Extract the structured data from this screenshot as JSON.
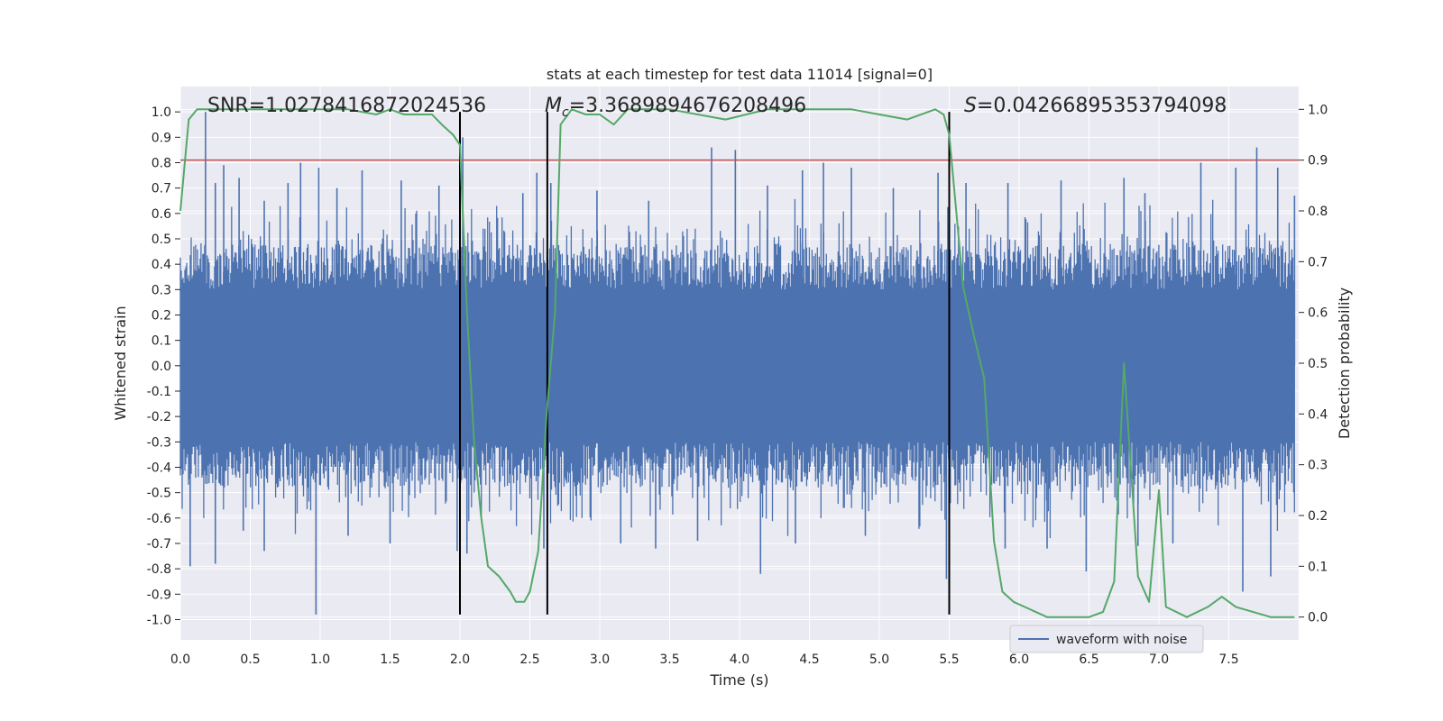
{
  "chart_data": {
    "type": "line",
    "title": "stats at each timestep for test data 11014 [signal=0]",
    "xlabel": "Time (s)",
    "ylabel": "Whitened strain",
    "y2label": "Detection probability",
    "xlim": [
      0.0,
      8.0
    ],
    "ylim": [
      -1.08,
      1.1
    ],
    "y2lim": [
      -0.045,
      1.045
    ],
    "x_ticks": [
      "0.0",
      "0.5",
      "1.0",
      "1.5",
      "2.0",
      "2.5",
      "3.0",
      "3.5",
      "4.0",
      "4.5",
      "5.0",
      "5.5",
      "6.0",
      "6.5",
      "7.0",
      "7.5"
    ],
    "y_ticks": [
      "1.0",
      "0.9",
      "0.8",
      "0.7",
      "0.6",
      "0.5",
      "0.4",
      "0.3",
      "0.2",
      "0.1",
      "0.0",
      "-0.1",
      "-0.2",
      "-0.3",
      "-0.4",
      "-0.5",
      "-0.6",
      "-0.7",
      "-0.8",
      "-0.9",
      "-1.0"
    ],
    "y2_ticks": [
      "1.0",
      "0.9",
      "0.8",
      "0.7",
      "0.6",
      "0.5",
      "0.4",
      "0.3",
      "0.2",
      "0.1",
      "0.0"
    ],
    "grid": true,
    "legend": {
      "placement": "lower-right",
      "entries": [
        "waveform with noise"
      ]
    },
    "annotations": {
      "snr": "SNR=1.0278416872024536",
      "mc_symbol": "M",
      "mc_sub": "c",
      "mc_value": "=3.3689894676208496",
      "s_symbol": "S",
      "s_value": "=0.04266895353794098"
    },
    "threshold": {
      "axis": "y2",
      "value": 0.9,
      "color": "#c44e52"
    },
    "vlines": [
      2.0,
      2.625,
      5.5
    ],
    "vline_range_y": [
      -0.98,
      1.0
    ],
    "waveform": {
      "name": "waveform with noise",
      "color": "#4c72b0",
      "core_amplitude": 0.3,
      "spike_peaks": [
        {
          "x": 0.18,
          "y": 1.0
        },
        {
          "x": 0.25,
          "y": 0.72
        },
        {
          "x": 0.31,
          "y": 0.79
        },
        {
          "x": 0.42,
          "y": 0.74
        },
        {
          "x": 0.6,
          "y": 0.65
        },
        {
          "x": 0.77,
          "y": 0.72
        },
        {
          "x": 0.86,
          "y": 0.8
        },
        {
          "x": 0.99,
          "y": 0.78
        },
        {
          "x": 1.12,
          "y": 0.7
        },
        {
          "x": 1.3,
          "y": 0.77
        },
        {
          "x": 1.58,
          "y": 0.73
        },
        {
          "x": 1.85,
          "y": 0.71
        },
        {
          "x": 2.02,
          "y": 0.9
        },
        {
          "x": 2.45,
          "y": 0.68
        },
        {
          "x": 2.55,
          "y": 0.76
        },
        {
          "x": 2.65,
          "y": 0.72
        },
        {
          "x": 2.98,
          "y": 0.69
        },
        {
          "x": 3.35,
          "y": 0.65
        },
        {
          "x": 3.8,
          "y": 0.86
        },
        {
          "x": 3.97,
          "y": 0.85
        },
        {
          "x": 4.2,
          "y": 0.71
        },
        {
          "x": 4.45,
          "y": 0.77
        },
        {
          "x": 4.6,
          "y": 0.8
        },
        {
          "x": 4.8,
          "y": 0.78
        },
        {
          "x": 5.1,
          "y": 0.7
        },
        {
          "x": 5.42,
          "y": 0.76
        },
        {
          "x": 5.62,
          "y": 0.72
        },
        {
          "x": 5.92,
          "y": 0.72
        },
        {
          "x": 6.3,
          "y": 0.73
        },
        {
          "x": 6.75,
          "y": 0.74
        },
        {
          "x": 6.9,
          "y": 0.68
        },
        {
          "x": 7.3,
          "y": 0.8
        },
        {
          "x": 7.55,
          "y": 0.78
        },
        {
          "x": 7.7,
          "y": 0.86
        },
        {
          "x": 7.85,
          "y": 0.78
        },
        {
          "x": 7.97,
          "y": 0.67
        }
      ],
      "spike_troughs": [
        {
          "x": 0.07,
          "y": -0.79
        },
        {
          "x": 0.25,
          "y": -0.78
        },
        {
          "x": 0.45,
          "y": -0.65
        },
        {
          "x": 0.6,
          "y": -0.73
        },
        {
          "x": 0.97,
          "y": -0.98
        },
        {
          "x": 1.2,
          "y": -0.67
        },
        {
          "x": 1.5,
          "y": -0.7
        },
        {
          "x": 1.98,
          "y": -0.73
        },
        {
          "x": 2.05,
          "y": -0.74
        },
        {
          "x": 2.6,
          "y": -0.72
        },
        {
          "x": 3.15,
          "y": -0.7
        },
        {
          "x": 3.4,
          "y": -0.72
        },
        {
          "x": 3.7,
          "y": -0.69
        },
        {
          "x": 4.15,
          "y": -0.82
        },
        {
          "x": 4.4,
          "y": -0.7
        },
        {
          "x": 4.9,
          "y": -0.67
        },
        {
          "x": 5.48,
          "y": -0.84
        },
        {
          "x": 5.9,
          "y": -0.72
        },
        {
          "x": 6.2,
          "y": -0.72
        },
        {
          "x": 6.48,
          "y": -0.81
        },
        {
          "x": 6.85,
          "y": -0.71
        },
        {
          "x": 7.1,
          "y": -0.7
        },
        {
          "x": 7.6,
          "y": -0.89
        },
        {
          "x": 7.8,
          "y": -0.83
        }
      ]
    },
    "probability": {
      "color": "#55a868",
      "x": [
        0.0,
        0.06,
        0.12,
        0.3,
        0.6,
        0.9,
        1.2,
        1.4,
        1.5,
        1.6,
        1.8,
        1.87,
        1.95,
        2.0,
        2.05,
        2.1,
        2.15,
        2.2,
        2.28,
        2.36,
        2.4,
        2.46,
        2.5,
        2.56,
        2.62,
        2.68,
        2.72,
        2.8,
        2.9,
        3.0,
        3.1,
        3.2,
        3.5,
        3.9,
        4.2,
        4.8,
        5.0,
        5.2,
        5.4,
        5.46,
        5.5,
        5.6,
        5.68,
        5.75,
        5.82,
        5.88,
        5.96,
        6.04,
        6.2,
        6.4,
        6.5,
        6.6,
        6.68,
        6.75,
        6.85,
        6.93,
        7.0,
        7.05,
        7.2,
        7.35,
        7.45,
        7.55,
        7.8,
        7.97
      ],
      "y": [
        0.8,
        0.98,
        1.0,
        1.0,
        1.0,
        1.0,
        1.0,
        0.99,
        1.0,
        0.99,
        0.99,
        0.97,
        0.95,
        0.93,
        0.6,
        0.35,
        0.2,
        0.1,
        0.08,
        0.05,
        0.03,
        0.03,
        0.05,
        0.13,
        0.4,
        0.6,
        0.97,
        1.0,
        0.99,
        0.99,
        0.97,
        1.0,
        1.0,
        0.98,
        1.0,
        1.0,
        0.99,
        0.98,
        1.0,
        0.99,
        0.95,
        0.65,
        0.55,
        0.47,
        0.15,
        0.05,
        0.03,
        0.02,
        0.0,
        0.0,
        0.0,
        0.01,
        0.07,
        0.5,
        0.08,
        0.03,
        0.25,
        0.02,
        0.0,
        0.02,
        0.04,
        0.02,
        0.0,
        0.0
      ]
    }
  }
}
